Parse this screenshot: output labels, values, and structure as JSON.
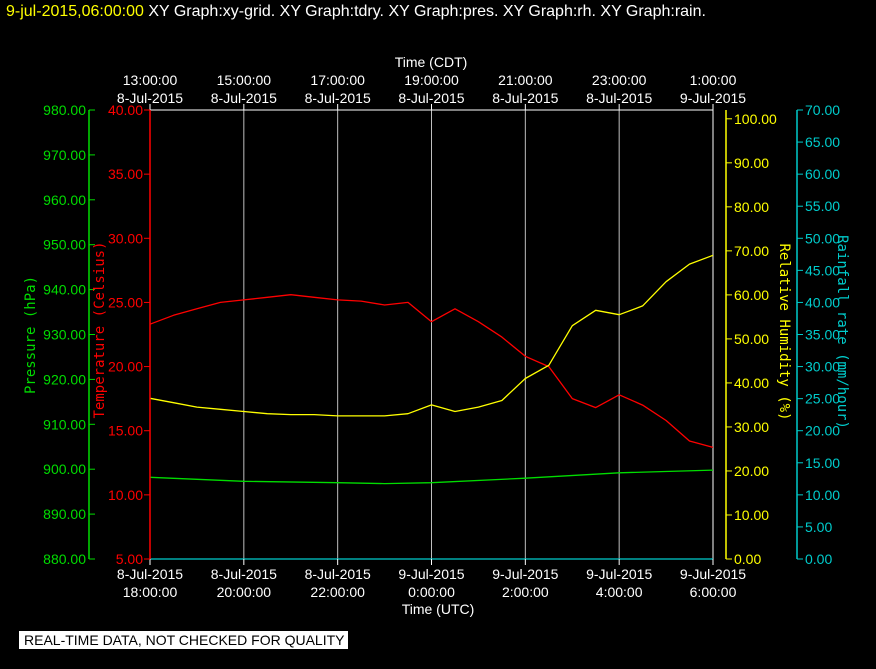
{
  "header": {
    "timestamp": "9-jul-2015,06:00:00",
    "graphs": "XY Graph:xy-grid.  XY Graph:tdry.  XY Graph:pres.  XY Graph:rh.  XY Graph:rain."
  },
  "notice": "REAL-TIME DATA, NOT CHECKED FOR QUALITY",
  "colors": {
    "background": "#000000",
    "grid": "#ffffff",
    "pressure": "#00dd00",
    "temperature": "#ff0000",
    "humidity": "#ffff00",
    "rain": "#00cccc"
  },
  "chart_data": {
    "type": "line",
    "grid": true,
    "x_top": {
      "title": "Time (CDT)",
      "ticks": [
        {
          "time": "13:00:00",
          "date": "8-Jul-2015"
        },
        {
          "time": "15:00:00",
          "date": "8-Jul-2015"
        },
        {
          "time": "17:00:00",
          "date": "8-Jul-2015"
        },
        {
          "time": "19:00:00",
          "date": "8-Jul-2015"
        },
        {
          "time": "21:00:00",
          "date": "8-Jul-2015"
        },
        {
          "time": "23:00:00",
          "date": "8-Jul-2015"
        },
        {
          "time": "1:00:00",
          "date": "9-Jul-2015"
        }
      ]
    },
    "x_bottom": {
      "title": "Time (UTC)",
      "range": [
        "2015-07-08 18:00",
        "2015-07-09 06:00"
      ],
      "ticks": [
        {
          "date": "8-Jul-2015",
          "time": "18:00:00"
        },
        {
          "date": "8-Jul-2015",
          "time": "20:00:00"
        },
        {
          "date": "8-Jul-2015",
          "time": "22:00:00"
        },
        {
          "date": "9-Jul-2015",
          "time": "0:00:00"
        },
        {
          "date": "9-Jul-2015",
          "time": "2:00:00"
        },
        {
          "date": "9-Jul-2015",
          "time": "4:00:00"
        },
        {
          "date": "9-Jul-2015",
          "time": "6:00:00"
        }
      ]
    },
    "axes": {
      "pressure": {
        "label": "Pressure (hPa)",
        "range": [
          880,
          980
        ],
        "ticks": [
          "880.00",
          "890.00",
          "900.00",
          "910.00",
          "920.00",
          "930.00",
          "940.00",
          "950.00",
          "960.00",
          "970.00",
          "980.00"
        ]
      },
      "temperature": {
        "label": "Temperature (Celsius)",
        "range": [
          5,
          40
        ],
        "ticks": [
          "5.00",
          "10.00",
          "15.00",
          "20.00",
          "25.00",
          "30.00",
          "35.00",
          "40.00"
        ]
      },
      "humidity": {
        "label": "Relative Humidity (%)",
        "range": [
          0,
          102
        ],
        "ticks": [
          "0.00",
          "10.00",
          "20.00",
          "30.00",
          "40.00",
          "50.00",
          "60.00",
          "70.00",
          "80.00",
          "90.00",
          "100.00"
        ]
      },
      "rain": {
        "label": "Rainfall rate (mm/hour)",
        "range": [
          0,
          70
        ],
        "ticks": [
          "0.00",
          "5.00",
          "10.00",
          "15.00",
          "20.00",
          "25.00",
          "30.00",
          "35.00",
          "40.00",
          "45.00",
          "50.00",
          "55.00",
          "60.00",
          "65.00",
          "70.00"
        ]
      }
    },
    "series": [
      {
        "name": "Temperature",
        "axis": "temperature",
        "x": [
          "2015-07-08 18:00",
          "2015-07-08 18:30",
          "2015-07-08 19:00",
          "2015-07-08 19:30",
          "2015-07-08 20:00",
          "2015-07-08 20:30",
          "2015-07-08 21:00",
          "2015-07-08 21:30",
          "2015-07-08 22:00",
          "2015-07-08 22:30",
          "2015-07-08 23:00",
          "2015-07-08 23:30",
          "2015-07-09 00:00",
          "2015-07-09 00:30",
          "2015-07-09 01:00",
          "2015-07-09 01:30",
          "2015-07-09 02:00",
          "2015-07-09 02:30",
          "2015-07-09 03:00",
          "2015-07-09 03:30",
          "2015-07-09 04:00",
          "2015-07-09 04:30",
          "2015-07-09 05:00",
          "2015-07-09 05:30",
          "2015-07-09 06:00"
        ],
        "values": [
          23.3,
          24.0,
          24.5,
          25.0,
          25.2,
          25.4,
          25.6,
          25.4,
          25.2,
          25.1,
          24.8,
          25.0,
          23.5,
          24.5,
          23.5,
          22.3,
          20.8,
          20.0,
          17.5,
          16.8,
          17.8,
          17.0,
          15.8,
          14.2,
          13.7
        ]
      },
      {
        "name": "Relative Humidity",
        "axis": "humidity",
        "x": [
          "2015-07-08 18:00",
          "2015-07-08 18:30",
          "2015-07-08 19:00",
          "2015-07-08 19:30",
          "2015-07-08 20:00",
          "2015-07-08 20:30",
          "2015-07-08 21:00",
          "2015-07-08 21:30",
          "2015-07-08 22:00",
          "2015-07-08 22:30",
          "2015-07-08 23:00",
          "2015-07-08 23:30",
          "2015-07-09 00:00",
          "2015-07-09 00:30",
          "2015-07-09 01:00",
          "2015-07-09 01:30",
          "2015-07-09 02:00",
          "2015-07-09 02:30",
          "2015-07-09 03:00",
          "2015-07-09 03:30",
          "2015-07-09 04:00",
          "2015-07-09 04:30",
          "2015-07-09 05:00",
          "2015-07-09 05:30",
          "2015-07-09 06:00"
        ],
        "values": [
          36.5,
          35.5,
          34.5,
          34.0,
          33.5,
          33.0,
          32.8,
          32.8,
          32.5,
          32.5,
          32.5,
          33.0,
          35.0,
          33.5,
          34.5,
          36.0,
          41.0,
          44.0,
          53.0,
          56.5,
          55.5,
          57.5,
          63.0,
          67.0,
          69.0
        ]
      },
      {
        "name": "Pressure",
        "axis": "pressure",
        "x": [
          "2015-07-08 18:00",
          "2015-07-08 20:00",
          "2015-07-08 22:00",
          "2015-07-08 23:00",
          "2015-07-09 00:00",
          "2015-07-09 02:00",
          "2015-07-09 04:00",
          "2015-07-09 06:00"
        ],
        "values": [
          898.2,
          897.3,
          897.0,
          896.8,
          897.0,
          898.0,
          899.2,
          899.8
        ]
      },
      {
        "name": "Rainfall rate",
        "axis": "rain",
        "x": [
          "2015-07-08 18:00",
          "2015-07-09 06:00"
        ],
        "values": [
          0,
          0
        ]
      }
    ]
  }
}
